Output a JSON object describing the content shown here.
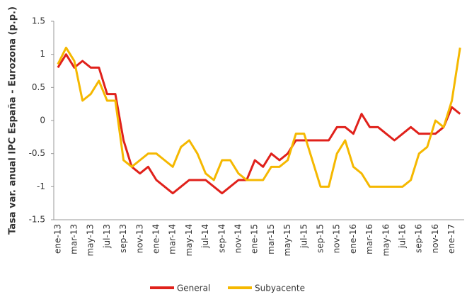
{
  "chart_data": {
    "type": "line",
    "y_label": "Tasa var. anual IPC España - Eurozona (p.p.)",
    "categories": [
      "ene-13",
      null,
      "mar-13",
      null,
      "may-13",
      null,
      "jul-13",
      null,
      "sep-13",
      null,
      "nov-13",
      null,
      "ene-14",
      null,
      "mar-14",
      null,
      "may-14",
      null,
      "jul-14",
      null,
      "sep-14",
      null,
      "nov-14",
      null,
      "ene-15",
      null,
      "mar-15",
      null,
      "may-15",
      null,
      "jul-15",
      null,
      "sep-15",
      null,
      "nov-15",
      null,
      "ene-16",
      null,
      "mar-16",
      null,
      "may-16",
      null,
      "jul-16",
      null,
      "sep-16",
      null,
      "nov-16",
      null,
      "ene-17",
      null
    ],
    "series": [
      {
        "name": "General",
        "color": "#e0211b",
        "values": [
          0.8,
          1.0,
          0.8,
          0.9,
          0.8,
          0.8,
          0.4,
          0.4,
          -0.3,
          -0.7,
          -0.8,
          -0.7,
          -0.9,
          -1.0,
          -1.1,
          -1.0,
          -0.9,
          -0.9,
          -0.9,
          -1.0,
          -1.1,
          -1.0,
          -0.9,
          -0.9,
          -0.6,
          -0.7,
          -0.5,
          -0.6,
          -0.5,
          -0.3,
          -0.3,
          -0.3,
          -0.3,
          -0.3,
          -0.1,
          -0.1,
          -0.2,
          0.1,
          -0.1,
          -0.1,
          -0.2,
          -0.3,
          -0.2,
          -0.1,
          -0.2,
          -0.2,
          -0.2,
          -0.1,
          0.2,
          0.1
        ]
      },
      {
        "name": "Subyacente",
        "color": "#f5b800",
        "values": [
          0.85,
          1.1,
          0.9,
          0.3,
          0.4,
          0.6,
          0.3,
          0.3,
          -0.6,
          -0.7,
          -0.6,
          -0.5,
          -0.5,
          -0.6,
          -0.7,
          -0.4,
          -0.3,
          -0.5,
          -0.8,
          -0.9,
          -0.6,
          -0.6,
          -0.8,
          -0.9,
          -0.9,
          -0.9,
          -0.7,
          -0.7,
          -0.6,
          -0.2,
          -0.2,
          -0.6,
          -1.0,
          -1.0,
          -0.5,
          -0.3,
          -0.7,
          -0.8,
          -1.0,
          -1.0,
          -1.0,
          -1.0,
          -1.0,
          -0.9,
          -0.5,
          -0.4,
          0.0,
          -0.1,
          0.3,
          1.1
        ]
      }
    ],
    "ylim": [
      -1.5,
      1.5
    ],
    "yticks": [
      {
        "value": 1.5,
        "label": "1.5"
      },
      {
        "value": 1,
        "label": "1"
      },
      {
        "value": 0.5,
        "label": "0.5"
      },
      {
        "value": 0,
        "label": "0"
      },
      {
        "value": -0.5,
        "label": "-0.5"
      },
      {
        "value": -1,
        "label": "-1"
      },
      {
        "value": -1.5,
        "label": "-1.5"
      }
    ],
    "grid": false,
    "legend": "bottom"
  }
}
